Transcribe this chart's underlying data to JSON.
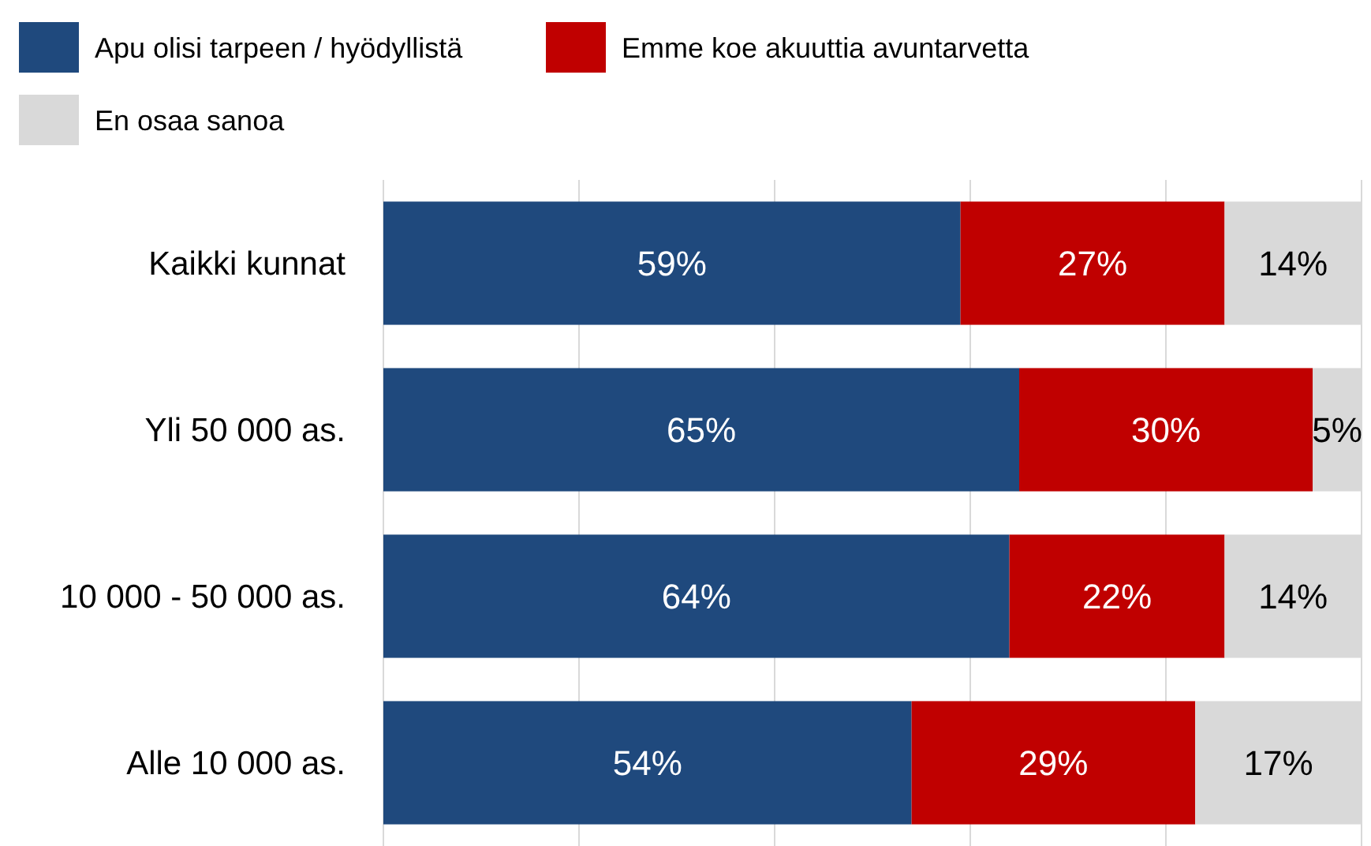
{
  "chart_data": {
    "type": "bar",
    "orientation": "horizontal",
    "stacked": true,
    "categories": [
      "Kaikki kunnat",
      "Yli 50 000 as.",
      "10 000 - 50 000 as.",
      "Alle 10 000 as."
    ],
    "series": [
      {
        "name": "Apu olisi tarpeen / hyödyllistä",
        "color": "#1f497d",
        "values": [
          59,
          65,
          64,
          54
        ],
        "value_labels": [
          "59%",
          "65%",
          "64%",
          "54%"
        ]
      },
      {
        "name": "Emme koe akuuttia avuntarvetta",
        "color": "#c00000",
        "values": [
          27,
          30,
          22,
          29
        ],
        "value_labels": [
          "27%",
          "30%",
          "22%",
          "29%"
        ]
      },
      {
        "name": "En osaa sanoa",
        "color": "#d9d9d9",
        "values": [
          14,
          5,
          14,
          17
        ],
        "value_labels": [
          "14%",
          "5%",
          "14%",
          "17%"
        ]
      }
    ],
    "xlim": [
      0,
      100
    ],
    "xticks": [
      {
        "value": 0,
        "label": null
      },
      {
        "value": 20,
        "label": null
      },
      {
        "value": 40,
        "label": null
      },
      {
        "value": 60,
        "label": null
      },
      {
        "value": 80,
        "label": null
      },
      {
        "value": 100,
        "label": null
      }
    ],
    "tick_labels": "y",
    "grid": "x",
    "legend": "top left"
  }
}
